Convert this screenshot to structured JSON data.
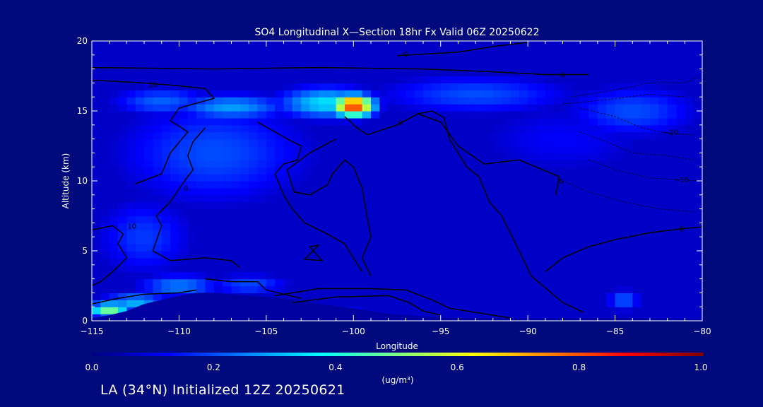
{
  "chart_data": {
    "type": "heatmap",
    "title": "SO4 Longitudinal X—Section 18hr  Fx Valid 06Z 20250622",
    "xlabel": "Longitude",
    "ylabel": "Altitude (km)",
    "xlim": [
      -115,
      -80
    ],
    "ylim": [
      0,
      20
    ],
    "x_ticks": [
      -115,
      -110,
      -105,
      -100,
      -95,
      -90,
      -85,
      -80
    ],
    "x_tick_labels": [
      "−115",
      "−110",
      "−105",
      "−100",
      "−95",
      "−90",
      "−85",
      "−80"
    ],
    "y_ticks": [
      0,
      5,
      10,
      15,
      20
    ],
    "y_tick_labels": [
      "0",
      "5",
      "10",
      "15",
      "20"
    ],
    "colorbar": {
      "min": 0.0,
      "max": 1.0,
      "ticks": [
        0.0,
        0.2,
        0.4,
        0.6,
        0.8,
        1.0
      ],
      "tick_labels": [
        "0.0",
        "0.2",
        "0.4",
        "0.6",
        "0.8",
        "1.0"
      ],
      "units": "(ug/m³)",
      "colors": [
        "#00007f",
        "#0000ff",
        "#007fff",
        "#00ffff",
        "#7fff7f",
        "#ffff00",
        "#ff7f00",
        "#ff0000",
        "#7f0000"
      ]
    },
    "concentration_blobs": [
      {
        "lon": -100.0,
        "alt": 15.4,
        "value": 0.85,
        "sx": 1.2,
        "sy": 0.8
      },
      {
        "lon": -101.5,
        "alt": 15.6,
        "value": 0.35,
        "sx": 3.0,
        "sy": 1.2
      },
      {
        "lon": -107.0,
        "alt": 15.3,
        "value": 0.28,
        "sx": 3.5,
        "sy": 1.0
      },
      {
        "lon": -111.0,
        "alt": 15.7,
        "value": 0.22,
        "sx": 3.0,
        "sy": 1.1
      },
      {
        "lon": -93.0,
        "alt": 16.2,
        "value": 0.2,
        "sx": 6.0,
        "sy": 1.5
      },
      {
        "lon": -84.0,
        "alt": 15.0,
        "value": 0.2,
        "sx": 4.0,
        "sy": 2.0
      },
      {
        "lon": -108.0,
        "alt": 12.0,
        "value": 0.2,
        "sx": 6.0,
        "sy": 4.0
      },
      {
        "lon": -112.0,
        "alt": 6.0,
        "value": 0.18,
        "sx": 3.0,
        "sy": 3.0
      },
      {
        "lon": -114.0,
        "alt": 0.8,
        "value": 0.5,
        "sx": 1.2,
        "sy": 0.6
      },
      {
        "lon": -112.5,
        "alt": 1.3,
        "value": 0.3,
        "sx": 2.0,
        "sy": 0.8
      },
      {
        "lon": -110.0,
        "alt": 2.5,
        "value": 0.25,
        "sx": 2.5,
        "sy": 0.9
      },
      {
        "lon": -106.0,
        "alt": 2.6,
        "value": 0.2,
        "sx": 2.5,
        "sy": 0.8
      },
      {
        "lon": -84.5,
        "alt": 1.5,
        "value": 0.22,
        "sx": 1.0,
        "sy": 0.8
      },
      {
        "lon": -101.0,
        "alt": 0.6,
        "value": 0.18,
        "sx": 2.0,
        "sy": 0.4
      },
      {
        "lon": -88.0,
        "alt": 13.0,
        "value": 0.12,
        "sx": 6.0,
        "sy": 3.0
      }
    ],
    "background_value": 0.07,
    "terrain_profile": [
      [
        -115,
        0.2
      ],
      [
        -114,
        0.4
      ],
      [
        -113,
        0.7
      ],
      [
        -112,
        1.2
      ],
      [
        -110,
        1.8
      ],
      [
        -109,
        2.0
      ],
      [
        -108,
        2.0
      ],
      [
        -106,
        1.8
      ],
      [
        -104,
        1.6
      ],
      [
        -102,
        1.2
      ],
      [
        -100,
        0.9
      ],
      [
        -98,
        0.5
      ],
      [
        -96,
        0.3
      ],
      [
        -94,
        0.2
      ],
      [
        -90,
        0.15
      ],
      [
        -85,
        0.2
      ],
      [
        -80,
        0.1
      ]
    ],
    "contour_lines": [
      {
        "label": "0",
        "label_at": [
          -97.0,
          19.1
        ],
        "points": [
          [
            -97.5,
            18.95
          ],
          [
            -94,
            19.2
          ],
          [
            -92,
            19.6
          ],
          [
            -90,
            19.9
          ]
        ]
      },
      {
        "label": "0",
        "label_at": [
          -88.0,
          17.6
        ],
        "points": [
          [
            -115,
            18.1
          ],
          [
            -108,
            18.0
          ],
          [
            -102,
            18.1
          ],
          [
            -96,
            18.0
          ],
          [
            -92,
            17.8
          ],
          [
            -89,
            17.6
          ],
          [
            -86.5,
            17.6
          ]
        ]
      },
      {
        "label": "10",
        "label_at": [
          -111.5,
          16.9
        ],
        "points": [
          [
            -115,
            17.2
          ],
          [
            -112,
            17.0
          ],
          [
            -110,
            16.8
          ],
          [
            -108.5,
            16.6
          ],
          [
            -108,
            15.9
          ],
          [
            -110,
            15.2
          ],
          [
            -110.5,
            14.3
          ],
          [
            -109.5,
            13.5
          ],
          [
            -110.5,
            12.0
          ],
          [
            -111,
            10.5
          ],
          [
            -112.5,
            9.8
          ]
        ]
      },
      {
        "label": "0",
        "label_at": [
          -97.3,
          14.2
        ],
        "points": [
          [
            -100.5,
            14.6
          ],
          [
            -99.8,
            13.8
          ],
          [
            -99.2,
            13.3
          ],
          [
            -97.5,
            14.0
          ],
          [
            -96.3,
            14.8
          ],
          [
            -95.5,
            15.0
          ],
          [
            -94.8,
            14.5
          ],
          [
            -94.5,
            13.0
          ],
          [
            -93.5,
            11.0
          ],
          [
            -92.8,
            10.3
          ],
          [
            -92.2,
            8.5
          ],
          [
            -91.5,
            7.5
          ],
          [
            -90.5,
            5.0
          ],
          [
            -89.8,
            3.2
          ],
          [
            -88.0,
            1.3
          ],
          [
            -86.8,
            0.6
          ]
        ]
      },
      {
        "label": "0",
        "label_at": [
          -88.1,
          10.0
        ],
        "points": [
          [
            -96.3,
            14.8
          ],
          [
            -95.0,
            14.2
          ],
          [
            -94.0,
            12.5
          ],
          [
            -92.5,
            11.2
          ],
          [
            -90.5,
            11.5
          ],
          [
            -88.2,
            10.3
          ],
          [
            -88.4,
            9.0
          ]
        ]
      },
      {
        "label": "0",
        "label_at": [
          -109.6,
          9.5
        ],
        "points": [
          [
            -108.5,
            13.8
          ],
          [
            -109.2,
            12.8
          ],
          [
            -109.5,
            11.8
          ],
          [
            -109.2,
            10.8
          ],
          [
            -109.8,
            9.8
          ],
          [
            -110.5,
            8.5
          ],
          [
            -111.3,
            7.5
          ],
          [
            -111.0,
            6.8
          ],
          [
            -111.5,
            5.0
          ],
          [
            -110.5,
            4.3
          ],
          [
            -108.5,
            4.5
          ],
          [
            -107.0,
            4.3
          ],
          [
            -106.5,
            3.8
          ]
        ]
      },
      {
        "label": "",
        "label_at": [
          0,
          0
        ],
        "points": [
          [
            -105.5,
            14.2
          ],
          [
            -104.5,
            13.5
          ],
          [
            -103.5,
            12.8
          ],
          [
            -103.0,
            12.5
          ],
          [
            -103.2,
            11.5
          ],
          [
            -104.0,
            11.2
          ],
          [
            -104.5,
            10.5
          ],
          [
            -104.0,
            9.0
          ],
          [
            -103.5,
            8.0
          ],
          [
            -102.8,
            7.0
          ],
          [
            -101.5,
            6.2
          ],
          [
            -100.5,
            5.5
          ],
          [
            -100.0,
            4.5
          ],
          [
            -99.5,
            3.5
          ]
        ]
      },
      {
        "label": "",
        "label_at": [
          0,
          0
        ],
        "points": [
          [
            -101.0,
            13.0
          ],
          [
            -102.5,
            12.0
          ],
          [
            -103.8,
            10.8
          ],
          [
            -103.4,
            9.2
          ],
          [
            -102.5,
            9.0
          ],
          [
            -101.5,
            9.7
          ],
          [
            -101.2,
            10.5
          ],
          [
            -100.5,
            11.5
          ],
          [
            -100.0,
            11.0
          ],
          [
            -99.5,
            9.5
          ],
          [
            -99.3,
            8.0
          ],
          [
            -99.0,
            6.0
          ],
          [
            -99.5,
            4.5
          ],
          [
            -99.0,
            3.2
          ]
        ]
      },
      {
        "label": "10",
        "label_at": [
          -112.7,
          6.8
        ],
        "points": [
          [
            -115,
            6.5
          ],
          [
            -113.8,
            6.8
          ],
          [
            -113.2,
            6.2
          ],
          [
            -113.5,
            5.5
          ],
          [
            -113.0,
            4.5
          ],
          [
            -113.8,
            3.5
          ],
          [
            -114.5,
            2.8
          ],
          [
            -115,
            2.5
          ]
        ]
      },
      {
        "label": "",
        "label_at": [
          0,
          0
        ],
        "points": [
          [
            -102.5,
            5.3
          ],
          [
            -101.8,
            4.3
          ],
          [
            -102.8,
            4.4
          ],
          [
            -102.0,
            5.4
          ],
          [
            -102.5,
            5.3
          ]
        ]
      },
      {
        "label": "",
        "label_at": [
          0,
          0
        ],
        "points": [
          [
            -104.5,
            1.8
          ],
          [
            -102.0,
            2.3
          ],
          [
            -99.0,
            2.3
          ],
          [
            -97.0,
            2.2
          ],
          [
            -95.5,
            1.5
          ],
          [
            -94.5,
            0.9
          ],
          [
            -92.5,
            0.5
          ],
          [
            -91.0,
            0.2
          ]
        ]
      },
      {
        "label": "",
        "label_at": [
          0,
          0
        ],
        "points": [
          [
            -103.5,
            1.3
          ],
          [
            -101.0,
            1.7
          ],
          [
            -98.0,
            1.8
          ],
          [
            -96.8,
            1.3
          ],
          [
            -96.0,
            0.7
          ],
          [
            -95.0,
            0.4
          ]
        ]
      },
      {
        "label": "",
        "label_at": [
          0,
          0
        ],
        "points": [
          [
            -108.5,
            3.0
          ],
          [
            -107.0,
            2.8
          ],
          [
            -105.5,
            2.8
          ],
          [
            -105.0,
            2.2
          ],
          [
            -103.0,
            1.6
          ]
        ]
      },
      {
        "label": "",
        "label_at": [
          0,
          0
        ],
        "points": [
          [
            -115,
            1.2
          ],
          [
            -113.5,
            1.6
          ],
          [
            -112.0,
            1.9
          ],
          [
            -110.0,
            2.0
          ],
          [
            -109.0,
            2.2
          ]
        ]
      },
      {
        "label": "0",
        "label_at": [
          -81.2,
          6.6
        ],
        "points": [
          [
            -89.0,
            3.5
          ],
          [
            -88.0,
            4.5
          ],
          [
            -86.5,
            5.3
          ],
          [
            -85.0,
            5.8
          ],
          [
            -83.0,
            6.3
          ],
          [
            -81.0,
            6.6
          ],
          [
            -80,
            6.7
          ]
        ]
      }
    ],
    "dashed_contours": [
      {
        "label": "−20",
        "label_at": [
          -81.8,
          13.5
        ],
        "points": [
          [
            -87.0,
            15.2
          ],
          [
            -85.0,
            14.6
          ],
          [
            -83.5,
            13.8
          ],
          [
            -82.0,
            13.4
          ],
          [
            -80.5,
            13.3
          ]
        ]
      },
      {
        "label": "−10",
        "label_at": [
          -81.2,
          10.1
        ],
        "points": [
          [
            -86.5,
            11.5
          ],
          [
            -85.0,
            10.8
          ],
          [
            -83.0,
            10.2
          ],
          [
            -81.5,
            10.1
          ],
          [
            -80,
            10.0
          ]
        ]
      },
      {
        "label": "",
        "label_at": [
          0,
          0
        ],
        "points": [
          [
            -87.5,
            16.0
          ],
          [
            -85.0,
            16.5
          ],
          [
            -83.0,
            17.0
          ],
          [
            -81.0,
            17.0
          ],
          [
            -80.2,
            17.5
          ]
        ]
      },
      {
        "label": "",
        "label_at": [
          0,
          0
        ],
        "points": [
          [
            -88.0,
            15.5
          ],
          [
            -85.5,
            15.8
          ],
          [
            -83.0,
            16.2
          ],
          [
            -81.0,
            16.0
          ]
        ]
      },
      {
        "label": "",
        "label_at": [
          0,
          0
        ],
        "points": [
          [
            -87.0,
            13.5
          ],
          [
            -85.5,
            12.8
          ],
          [
            -84.0,
            12.0
          ],
          [
            -82.0,
            11.8
          ],
          [
            -80.5,
            11.5
          ]
        ]
      },
      {
        "label": "",
        "label_at": [
          0,
          0
        ],
        "points": [
          [
            -88.0,
            10.0
          ],
          [
            -86.5,
            9.2
          ],
          [
            -84.5,
            8.5
          ],
          [
            -82.5,
            8.0
          ],
          [
            -80.5,
            7.8
          ]
        ]
      }
    ]
  },
  "subtitle": "LA (34°N) Initialized 12Z 20250621"
}
